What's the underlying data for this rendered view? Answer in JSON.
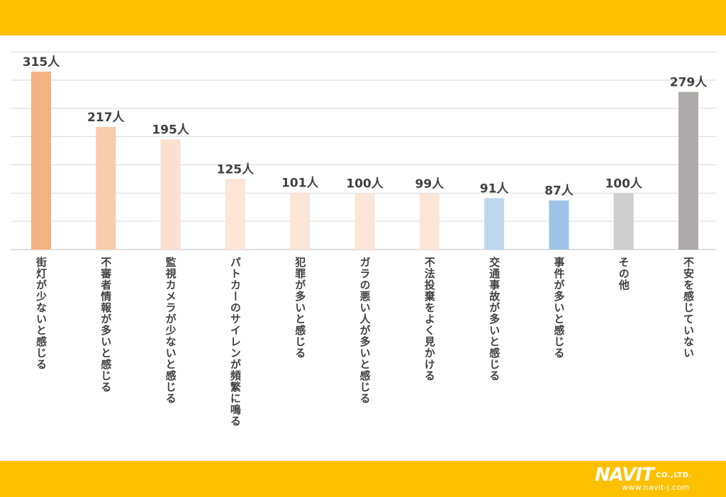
{
  "chart_data": {
    "type": "bar",
    "categories": [
      "街灯が少ないと感じる",
      "不審者情報が多いと感じる",
      "監視カメラが少ないと感じる",
      "パトカーのサイレンが頻繁に鳴る",
      "犯罪が多いと感じる",
      "ガラの悪い人が多いと感じる",
      "不法投棄をよく見かける",
      "交通事故が多いと感じる",
      "事件が多いと感じる",
      "その他",
      "不安を感じていない"
    ],
    "values": [
      315,
      217,
      195,
      125,
      101,
      100,
      99,
      91,
      87,
      100,
      279
    ],
    "value_labels": [
      "315人",
      "217人",
      "195人",
      "125人",
      "101人",
      "100人",
      "99人",
      "91人",
      "87人",
      "100人",
      "279人"
    ],
    "bar_colors": [
      "#f4b183",
      "#f8cbad",
      "#fbe0d0",
      "#fbe5d6",
      "#fbe5d6",
      "#fbe5d6",
      "#fbe5d6",
      "#bdd7ee",
      "#9dc3e6",
      "#d0cece",
      "#aeaaaa"
    ],
    "ylim": [
      0,
      350
    ],
    "grid": true,
    "gridline_step": 50,
    "title": "",
    "xlabel": "",
    "ylabel": ""
  },
  "brand": {
    "logo_text": "NAVIT",
    "company_suffix": "CO.,LTD.",
    "url": "www.navit-j.com"
  },
  "colors": {
    "banner": "#ffc000",
    "gridline": "#d9d9d9",
    "axis": "#bfbfbf",
    "label_text": "#404040"
  }
}
